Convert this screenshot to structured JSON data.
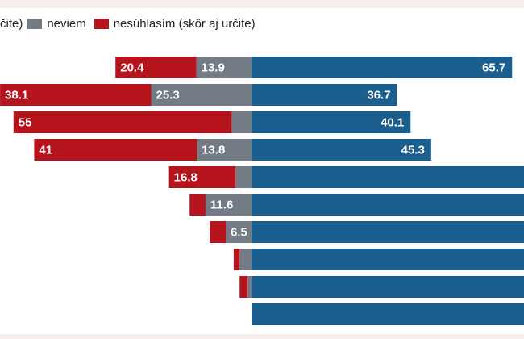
{
  "legend": {
    "agree_label": "čite)",
    "neutral_label": "neviem",
    "disagree_label": "nesúhlasím (skôr aj určite)"
  },
  "colors": {
    "agree": "#1b5f8f",
    "neutral": "#737b84",
    "disagree": "#b5141d"
  },
  "chart_data": {
    "type": "bar",
    "orientation": "horizontal-diverging",
    "series": [
      {
        "name": "neviem",
        "values": [
          13.9,
          25.3,
          5,
          13.8,
          4,
          11.6,
          6.5,
          3,
          1,
          0
        ]
      },
      {
        "name": "nesúhlasím (skôr aj určite)",
        "values": [
          20.4,
          38.1,
          55,
          41,
          16.8,
          4,
          4,
          1.5,
          2,
          0
        ]
      },
      {
        "name": "",
        "values": [
          65.7,
          36.7,
          40.1,
          45.3,
          79.2,
          84.4,
          89.5,
          95.5,
          97,
          100
        ]
      }
    ],
    "data_labels": {
      "neutral": [
        "13.9",
        "25.3",
        "",
        "13.8",
        "",
        "11.6",
        "6.5",
        "",
        "",
        ""
      ],
      "disagree": [
        "20.4",
        "38.1",
        "55",
        "41",
        "16.8",
        "",
        "",
        "",
        "",
        ""
      ],
      "agree": [
        "65.7",
        "36.7",
        "40.1",
        "45.3",
        "",
        "",
        "",
        "",
        "",
        ""
      ]
    }
  }
}
